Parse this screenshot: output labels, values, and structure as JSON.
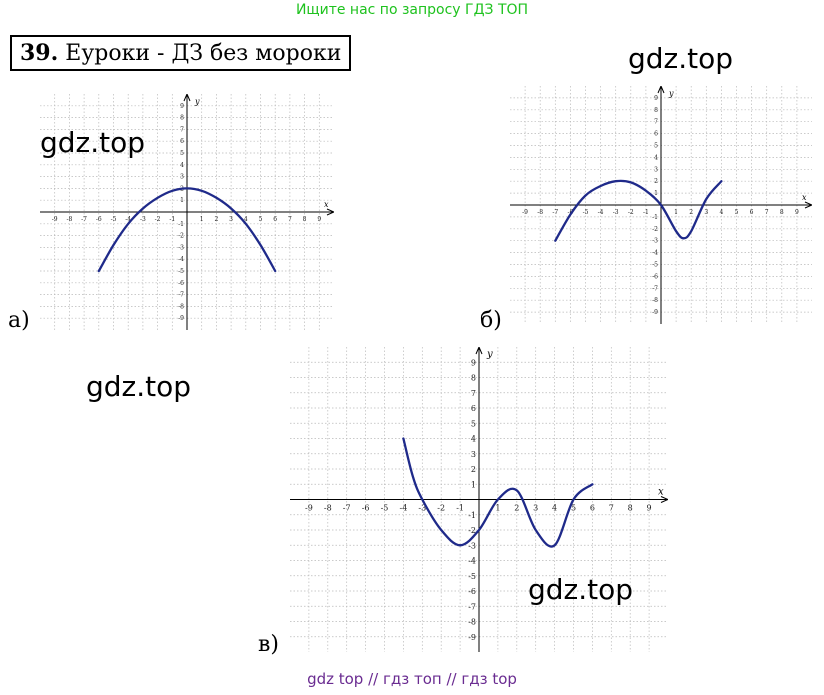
{
  "banner": "Ищите нас по запросу ГДЗ ТОП",
  "task": {
    "number": "39.",
    "title": "Еуроки - ДЗ без мороки"
  },
  "watermark": "gdz.top",
  "footer": "gdz top  //  гдз топ  //  гдз top",
  "colors": {
    "banner": "#1ec21e",
    "curve": "#1f2a8a",
    "footer": "#6a2c91"
  },
  "chart_data": [
    {
      "type": "line",
      "panel_label": "а)",
      "xlabel": "x",
      "ylabel": "y",
      "xlim": [
        -10,
        10
      ],
      "ylim": [
        -10,
        10
      ],
      "grid": true,
      "x_ticks": [
        "-9",
        "-8",
        "-7",
        "-6",
        "-5",
        "-4",
        "-3",
        "-2",
        "-1",
        "1",
        "2",
        "3",
        "4",
        "5",
        "6",
        "7",
        "8",
        "9"
      ],
      "y_ticks": [
        "9",
        "8",
        "7",
        "6",
        "5",
        "4",
        "3",
        "2",
        "1",
        "-1",
        "-2",
        "-3",
        "-4",
        "-5",
        "-6",
        "-7",
        "-8",
        "-9"
      ],
      "series": [
        {
          "x": [
            -6,
            -5,
            -4,
            -3,
            -2,
            -1,
            0,
            1,
            2,
            3,
            4,
            5,
            6
          ],
          "y": [
            -5,
            -2.8,
            -1,
            0.3,
            1.2,
            1.8,
            2,
            1.8,
            1.2,
            0.3,
            -1,
            -2.8,
            -5
          ]
        }
      ]
    },
    {
      "type": "line",
      "panel_label": "б)",
      "xlabel": "x",
      "ylabel": "y",
      "xlim": [
        -10,
        10
      ],
      "ylim": [
        -10,
        10
      ],
      "grid": true,
      "x_ticks": [
        "-9",
        "-8",
        "-7",
        "-6",
        "-5",
        "-4",
        "-3",
        "-2",
        "-1",
        "1",
        "2",
        "3",
        "4",
        "5",
        "6",
        "7",
        "8",
        "9"
      ],
      "y_ticks": [
        "9",
        "8",
        "7",
        "6",
        "5",
        "4",
        "3",
        "2",
        "1",
        "-1",
        "-2",
        "-3",
        "-4",
        "-5",
        "-6",
        "-7",
        "-8",
        "-9"
      ],
      "series": [
        {
          "x": [
            -7,
            -6,
            -5,
            -4,
            -3,
            -2,
            -1,
            0,
            1,
            1.5,
            2,
            3,
            4
          ],
          "y": [
            -3,
            -0.8,
            0.8,
            1.6,
            2,
            1.9,
            1.2,
            0,
            -2.2,
            -2.8,
            -2.2,
            0.5,
            2
          ]
        }
      ]
    },
    {
      "type": "line",
      "panel_label": "в)",
      "xlabel": "x",
      "ylabel": "y",
      "xlim": [
        -10,
        10
      ],
      "ylim": [
        -10,
        10
      ],
      "grid": true,
      "x_ticks": [
        "-9",
        "-8",
        "-7",
        "-6",
        "-5",
        "-4",
        "-3",
        "-2",
        "-1",
        "1",
        "2",
        "3",
        "4",
        "5",
        "6",
        "7",
        "8",
        "9"
      ],
      "y_ticks": [
        "9",
        "8",
        "7",
        "6",
        "5",
        "4",
        "3",
        "2",
        "1",
        "-1",
        "-2",
        "-3",
        "-4",
        "-5",
        "-6",
        "-7",
        "-8",
        "-9"
      ],
      "series": [
        {
          "x": [
            -4,
            -3.5,
            -3,
            -2,
            -1,
            0,
            1,
            2,
            3,
            4,
            5,
            6
          ],
          "y": [
            4,
            1.5,
            0,
            -2,
            -3,
            -2,
            0,
            0.6,
            -2,
            -3,
            0,
            1
          ]
        }
      ]
    }
  ]
}
